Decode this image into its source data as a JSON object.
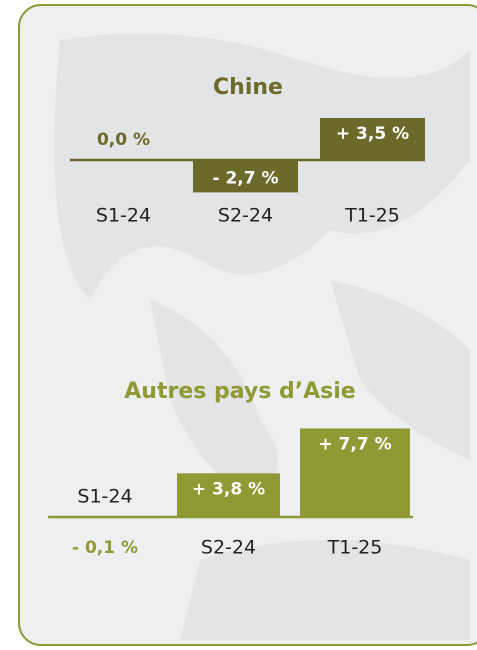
{
  "chart_data": [
    {
      "type": "bar",
      "title": "Chine",
      "categories": [
        "S1-24",
        "S2-24",
        "T1-25"
      ],
      "values": [
        0.0,
        -2.7,
        3.5
      ],
      "value_labels": [
        "0,0 %",
        "- 2,7 %",
        "+ 3,5 %"
      ],
      "color": "#6b6a2a"
    },
    {
      "type": "bar",
      "title": "Autres pays d’Asie",
      "categories": [
        "S1-24",
        "S2-24",
        "T1-25"
      ],
      "values": [
        -0.1,
        3.8,
        7.7
      ],
      "value_labels": [
        "- 0,1 %",
        "+ 3,8 %",
        "+ 7,7 %"
      ],
      "color": "#8f9a35"
    }
  ]
}
